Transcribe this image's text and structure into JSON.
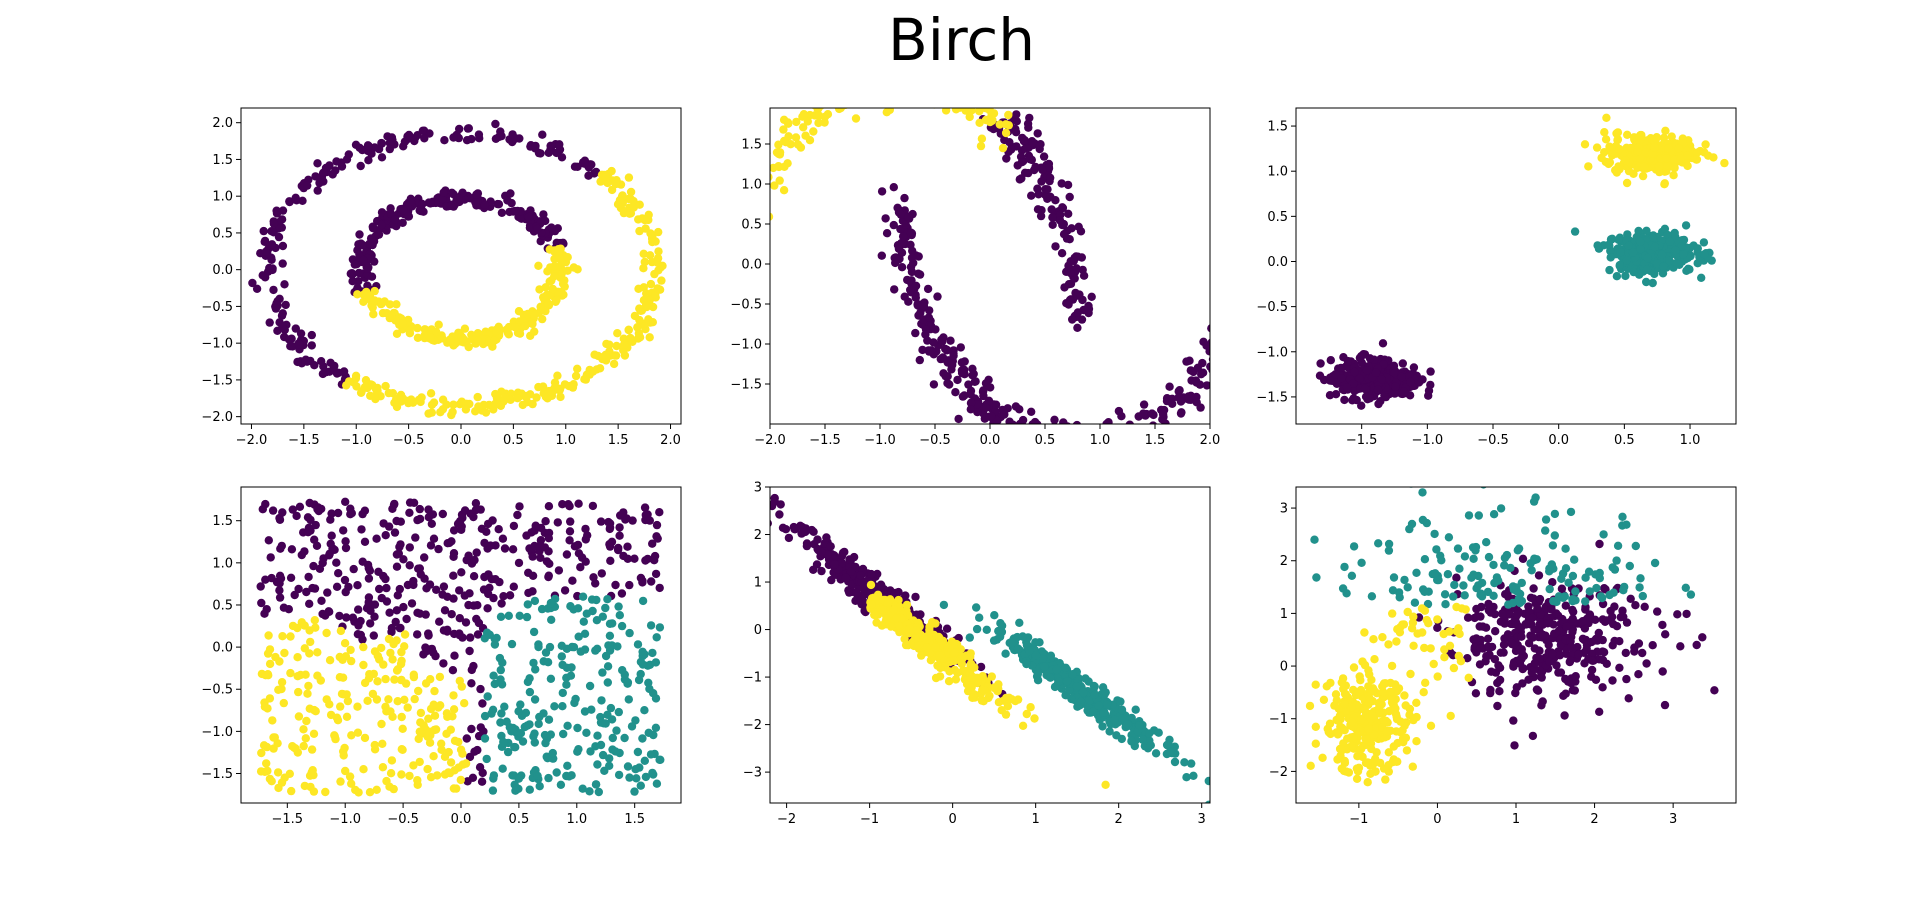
{
  "figure": {
    "title": "Birch"
  },
  "colors": {
    "cluster_0": "#440154",
    "cluster_1": "#21918c",
    "cluster_2": "#fde725"
  },
  "chart_data": [
    {
      "type": "scatter",
      "xlim": [
        -2.1,
        2.1
      ],
      "ylim": [
        -2.1,
        2.2
      ],
      "xticks": [
        -2.0,
        -1.5,
        -1.0,
        -0.5,
        0.0,
        0.5,
        1.0,
        1.5,
        2.0
      ],
      "yticks": [
        -2.0,
        -1.5,
        -1.0,
        -0.5,
        0.0,
        0.5,
        1.0,
        1.5,
        2.0
      ],
      "xtick_labels": [
        "−2.0",
        "−1.5",
        "−1.0",
        "−0.5",
        "0.0",
        "0.5",
        "1.0",
        "1.5",
        "2.0"
      ],
      "ytick_labels": [
        "−2.0",
        "−1.5",
        "−1.0",
        "−0.5",
        "0.0",
        "0.5",
        "1.0",
        "1.5",
        "2.0"
      ],
      "generator": {
        "kind": "circles",
        "n": 900,
        "outer_radius": 1.85,
        "inner_radius": 0.95,
        "noise": 0.06
      }
    },
    {
      "type": "scatter",
      "xlim": [
        -2.0,
        2.0
      ],
      "ylim": [
        -2.0,
        1.95
      ],
      "xticks": [
        -2.0,
        -1.5,
        -1.0,
        -0.5,
        0.0,
        0.5,
        1.0,
        1.5,
        2.0
      ],
      "yticks": [
        -1.5,
        -1.0,
        -0.5,
        0.0,
        0.5,
        1.0,
        1.5
      ],
      "xtick_labels": [
        "−2.0",
        "−1.5",
        "−1.0",
        "−0.5",
        "0.0",
        "0.5",
        "1.0",
        "1.5",
        "2.0"
      ],
      "ytick_labels": [
        "−1.5",
        "−1.0",
        "−0.5",
        "0.0",
        "0.5",
        "1.0",
        "1.5"
      ],
      "generator": {
        "kind": "moons",
        "n": 900,
        "noise": 0.07
      }
    },
    {
      "type": "scatter",
      "xlim": [
        -2.0,
        1.35
      ],
      "ylim": [
        -1.8,
        1.7
      ],
      "xticks": [
        -1.5,
        -1.0,
        -0.5,
        0.0,
        0.5,
        1.0
      ],
      "yticks": [
        -1.5,
        -1.0,
        -0.5,
        0.0,
        0.5,
        1.0,
        1.5
      ],
      "xtick_labels": [
        "−1.5",
        "−1.0",
        "−0.5",
        "0.0",
        "0.5",
        "1.0"
      ],
      "ytick_labels": [
        "−1.5",
        "−1.0",
        "−0.5",
        "0.0",
        "0.5",
        "1.0",
        "1.5"
      ],
      "generator": {
        "kind": "blobs",
        "n": 900,
        "centers": [
          [
            -1.4,
            -1.3,
            0
          ],
          [
            0.7,
            0.1,
            1
          ],
          [
            0.7,
            1.2,
            2
          ]
        ],
        "spread": [
          0.17,
          0.11
        ]
      }
    },
    {
      "type": "scatter",
      "xlim": [
        -1.9,
        1.9
      ],
      "ylim": [
        -1.85,
        1.9
      ],
      "xticks": [
        -1.5,
        -1.0,
        -0.5,
        0.0,
        0.5,
        1.0,
        1.5
      ],
      "yticks": [
        -1.5,
        -1.0,
        -0.5,
        0.0,
        0.5,
        1.0,
        1.5
      ],
      "xtick_labels": [
        "−1.5",
        "−1.0",
        "−0.5",
        "0.0",
        "0.5",
        "1.0",
        "1.5"
      ],
      "ytick_labels": [
        "−1.5",
        "−1.0",
        "−0.5",
        "0.0",
        "0.5",
        "1.0",
        "1.5"
      ],
      "generator": {
        "kind": "uniform",
        "n": 900,
        "range": 1.73
      }
    },
    {
      "type": "scatter",
      "xlim": [
        -2.2,
        3.1
      ],
      "ylim": [
        -3.65,
        3.0
      ],
      "xticks": [
        -2,
        -1,
        0,
        1,
        2,
        3
      ],
      "yticks": [
        -3,
        -2,
        -1,
        0,
        1,
        2,
        3
      ],
      "xtick_labels": [
        "−2",
        "−1",
        "0",
        "1",
        "2",
        "3"
      ],
      "ytick_labels": [
        "−3",
        "−2",
        "−1",
        "0",
        "1",
        "2",
        "3"
      ],
      "generator": {
        "kind": "aniso",
        "n": 900
      }
    },
    {
      "type": "scatter",
      "xlim": [
        -1.8,
        3.8
      ],
      "ylim": [
        -2.6,
        3.4
      ],
      "xticks": [
        -1,
        0,
        1,
        2,
        3
      ],
      "yticks": [
        -2,
        -1,
        0,
        1,
        2,
        3
      ],
      "xtick_labels": [
        "−1",
        "0",
        "1",
        "2",
        "3"
      ],
      "ytick_labels": [
        "−2",
        "−1",
        "0",
        "1",
        "2",
        "3"
      ],
      "generator": {
        "kind": "varied",
        "n": 900
      }
    }
  ]
}
